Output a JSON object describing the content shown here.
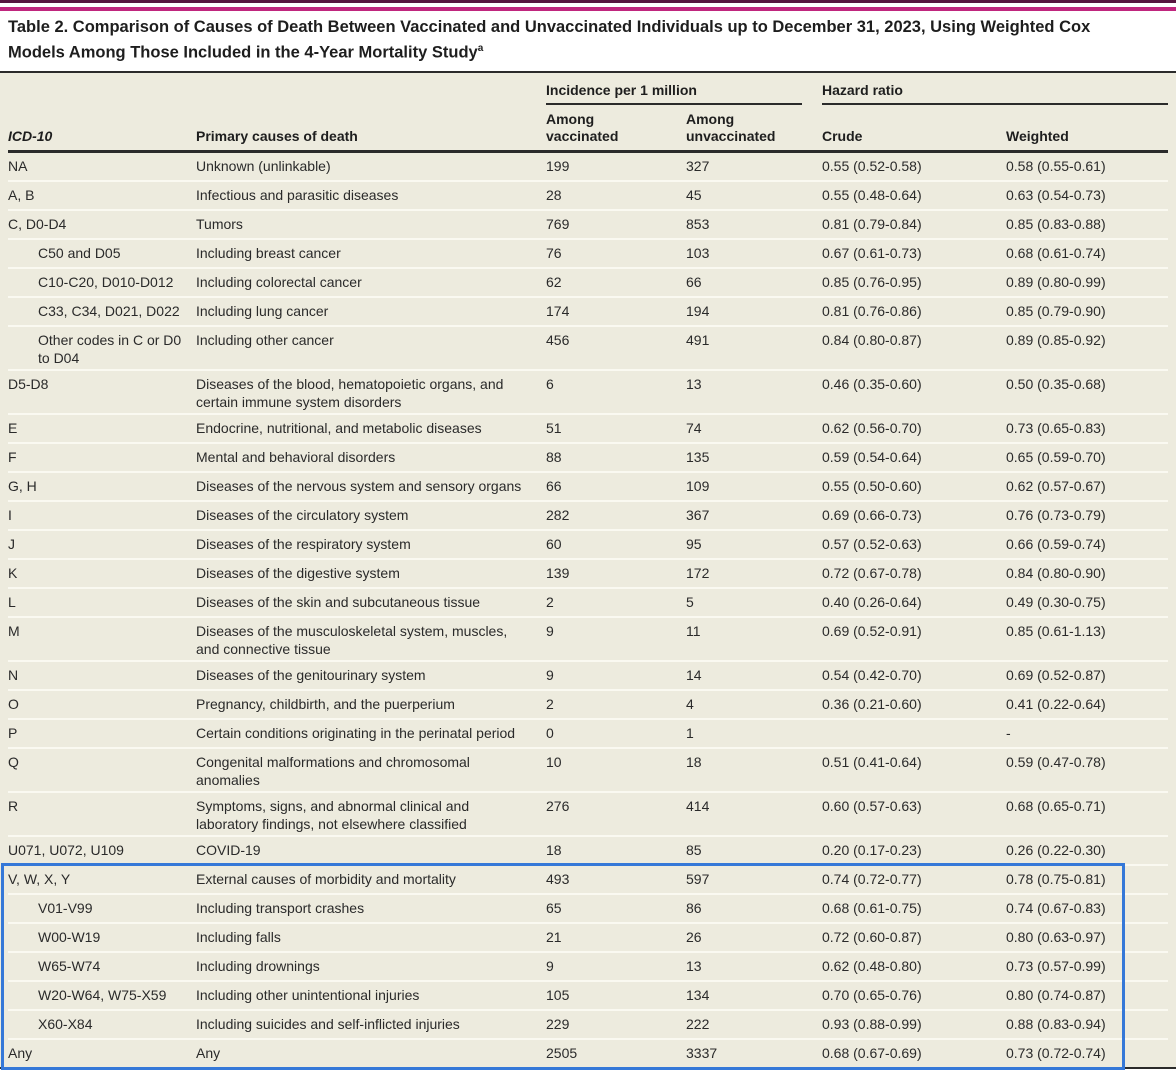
{
  "colors": {
    "magenta_rule": "#C0267E",
    "dark_top_rule": "#571640",
    "table_background": "#EDEBDE",
    "dark_rule": "#2b2b2b",
    "highlight_box_blue": "#3578D8"
  },
  "table": {
    "title": "Table 2. Comparison of Causes of Death Between Vaccinated and Unvaccinated Individuals up to December 31, 2023, Using Weighted Cox Models Among Those Included in the 4-Year Mortality Study",
    "title_superscript": "a",
    "spanners": {
      "incidence": "Incidence per 1 million",
      "hazard": "Hazard ratio"
    },
    "columns": {
      "icd": "ICD-10",
      "cause": "Primary causes of death",
      "vaccinated": "Among vaccinated",
      "unvaccinated": "Among unvaccinated",
      "crude": "Crude",
      "weighted": "Weighted"
    },
    "rows": [
      {
        "icd": "NA",
        "cause": "Unknown (unlinkable)",
        "vaccinated": "199",
        "unvaccinated": "327",
        "crude": "0.55 (0.52-0.58)",
        "weighted": "0.58 (0.55-0.61)",
        "indent": false,
        "highlighted": false
      },
      {
        "icd": "A, B",
        "cause": "Infectious and parasitic diseases",
        "vaccinated": "28",
        "unvaccinated": "45",
        "crude": "0.55 (0.48-0.64)",
        "weighted": "0.63 (0.54-0.73)",
        "indent": false,
        "highlighted": false
      },
      {
        "icd": "C, D0-D4",
        "cause": "Tumors",
        "vaccinated": "769",
        "unvaccinated": "853",
        "crude": "0.81 (0.79-0.84)",
        "weighted": "0.85 (0.83-0.88)",
        "indent": false,
        "highlighted": false
      },
      {
        "icd": "C50 and D05",
        "cause": "Including breast cancer",
        "vaccinated": "76",
        "unvaccinated": "103",
        "crude": "0.67 (0.61-0.73)",
        "weighted": "0.68 (0.61-0.74)",
        "indent": true,
        "highlighted": false
      },
      {
        "icd": "C10-C20, D010-D012",
        "cause": "Including colorectal cancer",
        "vaccinated": "62",
        "unvaccinated": "66",
        "crude": "0.85 (0.76-0.95)",
        "weighted": "0.89 (0.80-0.99)",
        "indent": true,
        "highlighted": false
      },
      {
        "icd": "C33, C34, D021, D022",
        "cause": "Including lung cancer",
        "vaccinated": "174",
        "unvaccinated": "194",
        "crude": "0.81 (0.76-0.86)",
        "weighted": "0.85 (0.79-0.90)",
        "indent": true,
        "highlighted": false
      },
      {
        "icd": "Other codes in C or D0 to D04",
        "cause": "Including other cancer",
        "vaccinated": "456",
        "unvaccinated": "491",
        "crude": "0.84 (0.80-0.87)",
        "weighted": "0.89 (0.85-0.92)",
        "indent": true,
        "highlighted": false
      },
      {
        "icd": "D5-D8",
        "cause": "Diseases of the blood, hematopoietic organs, and certain immune system disorders",
        "vaccinated": "6",
        "unvaccinated": "13",
        "crude": "0.46 (0.35-0.60)",
        "weighted": "0.50 (0.35-0.68)",
        "indent": false,
        "highlighted": false
      },
      {
        "icd": "E",
        "cause": "Endocrine, nutritional, and metabolic diseases",
        "vaccinated": "51",
        "unvaccinated": "74",
        "crude": "0.62 (0.56-0.70)",
        "weighted": "0.73 (0.65-0.83)",
        "indent": false,
        "highlighted": false
      },
      {
        "icd": "F",
        "cause": "Mental and behavioral disorders",
        "vaccinated": "88",
        "unvaccinated": "135",
        "crude": "0.59 (0.54-0.64)",
        "weighted": "0.65 (0.59-0.70)",
        "indent": false,
        "highlighted": false
      },
      {
        "icd": "G, H",
        "cause": "Diseases of the nervous system and sensory organs",
        "vaccinated": "66",
        "unvaccinated": "109",
        "crude": "0.55 (0.50-0.60)",
        "weighted": "0.62 (0.57-0.67)",
        "indent": false,
        "highlighted": false
      },
      {
        "icd": "I",
        "cause": "Diseases of the circulatory system",
        "vaccinated": "282",
        "unvaccinated": "367",
        "crude": "0.69 (0.66-0.73)",
        "weighted": "0.76 (0.73-0.79)",
        "indent": false,
        "highlighted": false
      },
      {
        "icd": "J",
        "cause": "Diseases of the respiratory system",
        "vaccinated": "60",
        "unvaccinated": "95",
        "crude": "0.57 (0.52-0.63)",
        "weighted": "0.66 (0.59-0.74)",
        "indent": false,
        "highlighted": false
      },
      {
        "icd": "K",
        "cause": "Diseases of the digestive system",
        "vaccinated": "139",
        "unvaccinated": "172",
        "crude": "0.72 (0.67-0.78)",
        "weighted": "0.84 (0.80-0.90)",
        "indent": false,
        "highlighted": false
      },
      {
        "icd": "L",
        "cause": "Diseases of the skin and subcutaneous tissue",
        "vaccinated": "2",
        "unvaccinated": "5",
        "crude": "0.40 (0.26-0.64)",
        "weighted": "0.49 (0.30-0.75)",
        "indent": false,
        "highlighted": false
      },
      {
        "icd": "M",
        "cause": "Diseases of the musculoskeletal system, muscles, and connective tissue",
        "vaccinated": "9",
        "unvaccinated": "11",
        "crude": "0.69 (0.52-0.91)",
        "weighted": "0.85 (0.61-1.13)",
        "indent": false,
        "highlighted": false
      },
      {
        "icd": "N",
        "cause": "Diseases of the genitourinary system",
        "vaccinated": "9",
        "unvaccinated": "14",
        "crude": "0.54 (0.42-0.70)",
        "weighted": "0.69 (0.52-0.87)",
        "indent": false,
        "highlighted": false
      },
      {
        "icd": "O",
        "cause": "Pregnancy, childbirth, and the puerperium",
        "vaccinated": "2",
        "unvaccinated": "4",
        "crude": "0.36 (0.21-0.60)",
        "weighted": "0.41 (0.22-0.64)",
        "indent": false,
        "highlighted": false
      },
      {
        "icd": "P",
        "cause": "Certain conditions originating in the perinatal period",
        "vaccinated": "0",
        "unvaccinated": "1",
        "crude": "",
        "weighted": "-",
        "indent": false,
        "highlighted": false
      },
      {
        "icd": "Q",
        "cause": "Congenital malformations and chromosomal anomalies",
        "vaccinated": "10",
        "unvaccinated": "18",
        "crude": "0.51 (0.41-0.64)",
        "weighted": "0.59 (0.47-0.78)",
        "indent": false,
        "highlighted": false
      },
      {
        "icd": "R",
        "cause": "Symptoms, signs, and abnormal clinical and laboratory findings, not elsewhere classified",
        "vaccinated": "276",
        "unvaccinated": "414",
        "crude": "0.60 (0.57-0.63)",
        "weighted": "0.68 (0.65-0.71)",
        "indent": false,
        "highlighted": false
      },
      {
        "icd": "U071, U072, U109",
        "cause": "COVID-19",
        "vaccinated": "18",
        "unvaccinated": "85",
        "crude": "0.20 (0.17-0.23)",
        "weighted": "0.26 (0.22-0.30)",
        "indent": false,
        "highlighted": false
      },
      {
        "icd": "V, W, X, Y",
        "cause": "External causes of morbidity and mortality",
        "vaccinated": "493",
        "unvaccinated": "597",
        "crude": "0.74 (0.72-0.77)",
        "weighted": "0.78 (0.75-0.81)",
        "indent": false,
        "highlighted": true
      },
      {
        "icd": "V01-V99",
        "cause": "Including transport crashes",
        "vaccinated": "65",
        "unvaccinated": "86",
        "crude": "0.68 (0.61-0.75)",
        "weighted": "0.74 (0.67-0.83)",
        "indent": true,
        "highlighted": true
      },
      {
        "icd": "W00-W19",
        "cause": "Including falls",
        "vaccinated": "21",
        "unvaccinated": "26",
        "crude": "0.72 (0.60-0.87)",
        "weighted": "0.80 (0.63-0.97)",
        "indent": true,
        "highlighted": true
      },
      {
        "icd": "W65-W74",
        "cause": "Including drownings",
        "vaccinated": "9",
        "unvaccinated": "13",
        "crude": "0.62 (0.48-0.80)",
        "weighted": "0.73 (0.57-0.99)",
        "indent": true,
        "highlighted": true
      },
      {
        "icd": "W20-W64, W75-X59",
        "cause": "Including other unintentional injuries",
        "vaccinated": "105",
        "unvaccinated": "134",
        "crude": "0.70 (0.65-0.76)",
        "weighted": "0.80 (0.74-0.87)",
        "indent": true,
        "highlighted": true
      },
      {
        "icd": "X60-X84",
        "cause": "Including suicides and self-inflicted injuries",
        "vaccinated": "229",
        "unvaccinated": "222",
        "crude": "0.93 (0.88-0.99)",
        "weighted": "0.88 (0.83-0.94)",
        "indent": true,
        "highlighted": true
      },
      {
        "icd": "Any",
        "cause": "Any",
        "vaccinated": "2505",
        "unvaccinated": "3337",
        "crude": "0.68 (0.67-0.69)",
        "weighted": "0.73 (0.72-0.74)",
        "indent": false,
        "highlighted": true
      }
    ]
  }
}
